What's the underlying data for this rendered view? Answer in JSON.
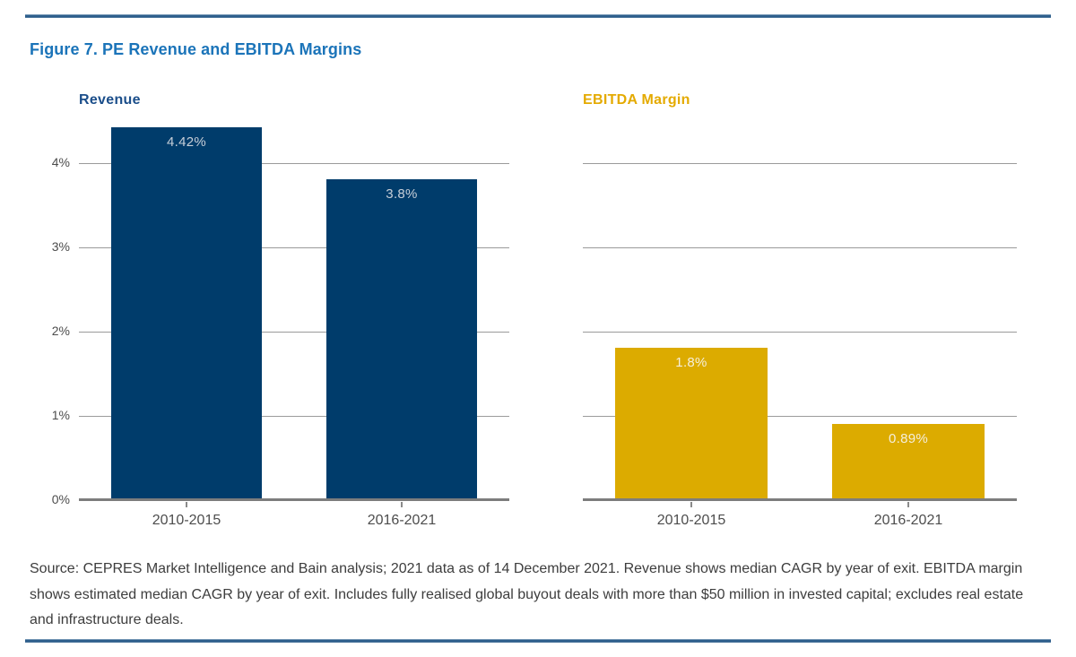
{
  "figure_title": "Figure 7. PE Revenue and EBITDA Margins",
  "source_note": "Source: CEPRES Market Intelligence and Bain analysis; 2021 data as of 14 December 2021. Revenue shows median CAGR by year of exit. EBITDA margin shows estimated median CAGR by year of exit. Includes fully realised global buyout deals with more than $50 million in invested capital; excludes real estate and infrastructure deals.",
  "colors": {
    "figure_title_blue": "#1b74b9",
    "revenue_header_navy": "#1b4e8a",
    "ebitda_header_gold": "#e4aa00",
    "navy_bar": "#003c6b",
    "gold_bar": "#dcab00",
    "gridline_gray": "#9b9b9b",
    "axis_gray": "#7d7d7d",
    "tick_label_gray": "#4d4d4d",
    "rule_blue": "#2d5e8c"
  },
  "chart_data": [
    {
      "type": "bar",
      "title": "Revenue",
      "title_color": "#1b4e8a",
      "bar_color": "#003c6b",
      "value_label_color": "#c7cfd8",
      "categories": [
        "2010-2015",
        "2016-2021"
      ],
      "values": [
        4.42,
        3.8
      ],
      "value_labels": [
        "4.42%",
        "3.8%"
      ],
      "ylim": [
        0,
        4.5
      ],
      "yticks": [
        0,
        1,
        2,
        3,
        4
      ],
      "ytick_labels": [
        "0%",
        "1%",
        "2%",
        "3%",
        "4%"
      ],
      "show_ytick_labels": true,
      "grid": true,
      "legend_position": "none",
      "note": "median CAGR by year of exit"
    },
    {
      "type": "bar",
      "title": "EBITDA Margin",
      "title_color": "#e4aa00",
      "bar_color": "#dcab00",
      "value_label_color": "#f5efdc",
      "categories": [
        "2010-2015",
        "2016-2021"
      ],
      "values": [
        1.8,
        0.89
      ],
      "value_labels": [
        "1.8%",
        "0.89%"
      ],
      "ylim": [
        0,
        4.5
      ],
      "yticks": [
        0,
        1,
        2,
        3,
        4
      ],
      "ytick_labels": [
        "0%",
        "1%",
        "2%",
        "3%",
        "4%"
      ],
      "show_ytick_labels": false,
      "grid": true,
      "legend_position": "none",
      "note": "estimated median CAGR by year of exit"
    }
  ]
}
